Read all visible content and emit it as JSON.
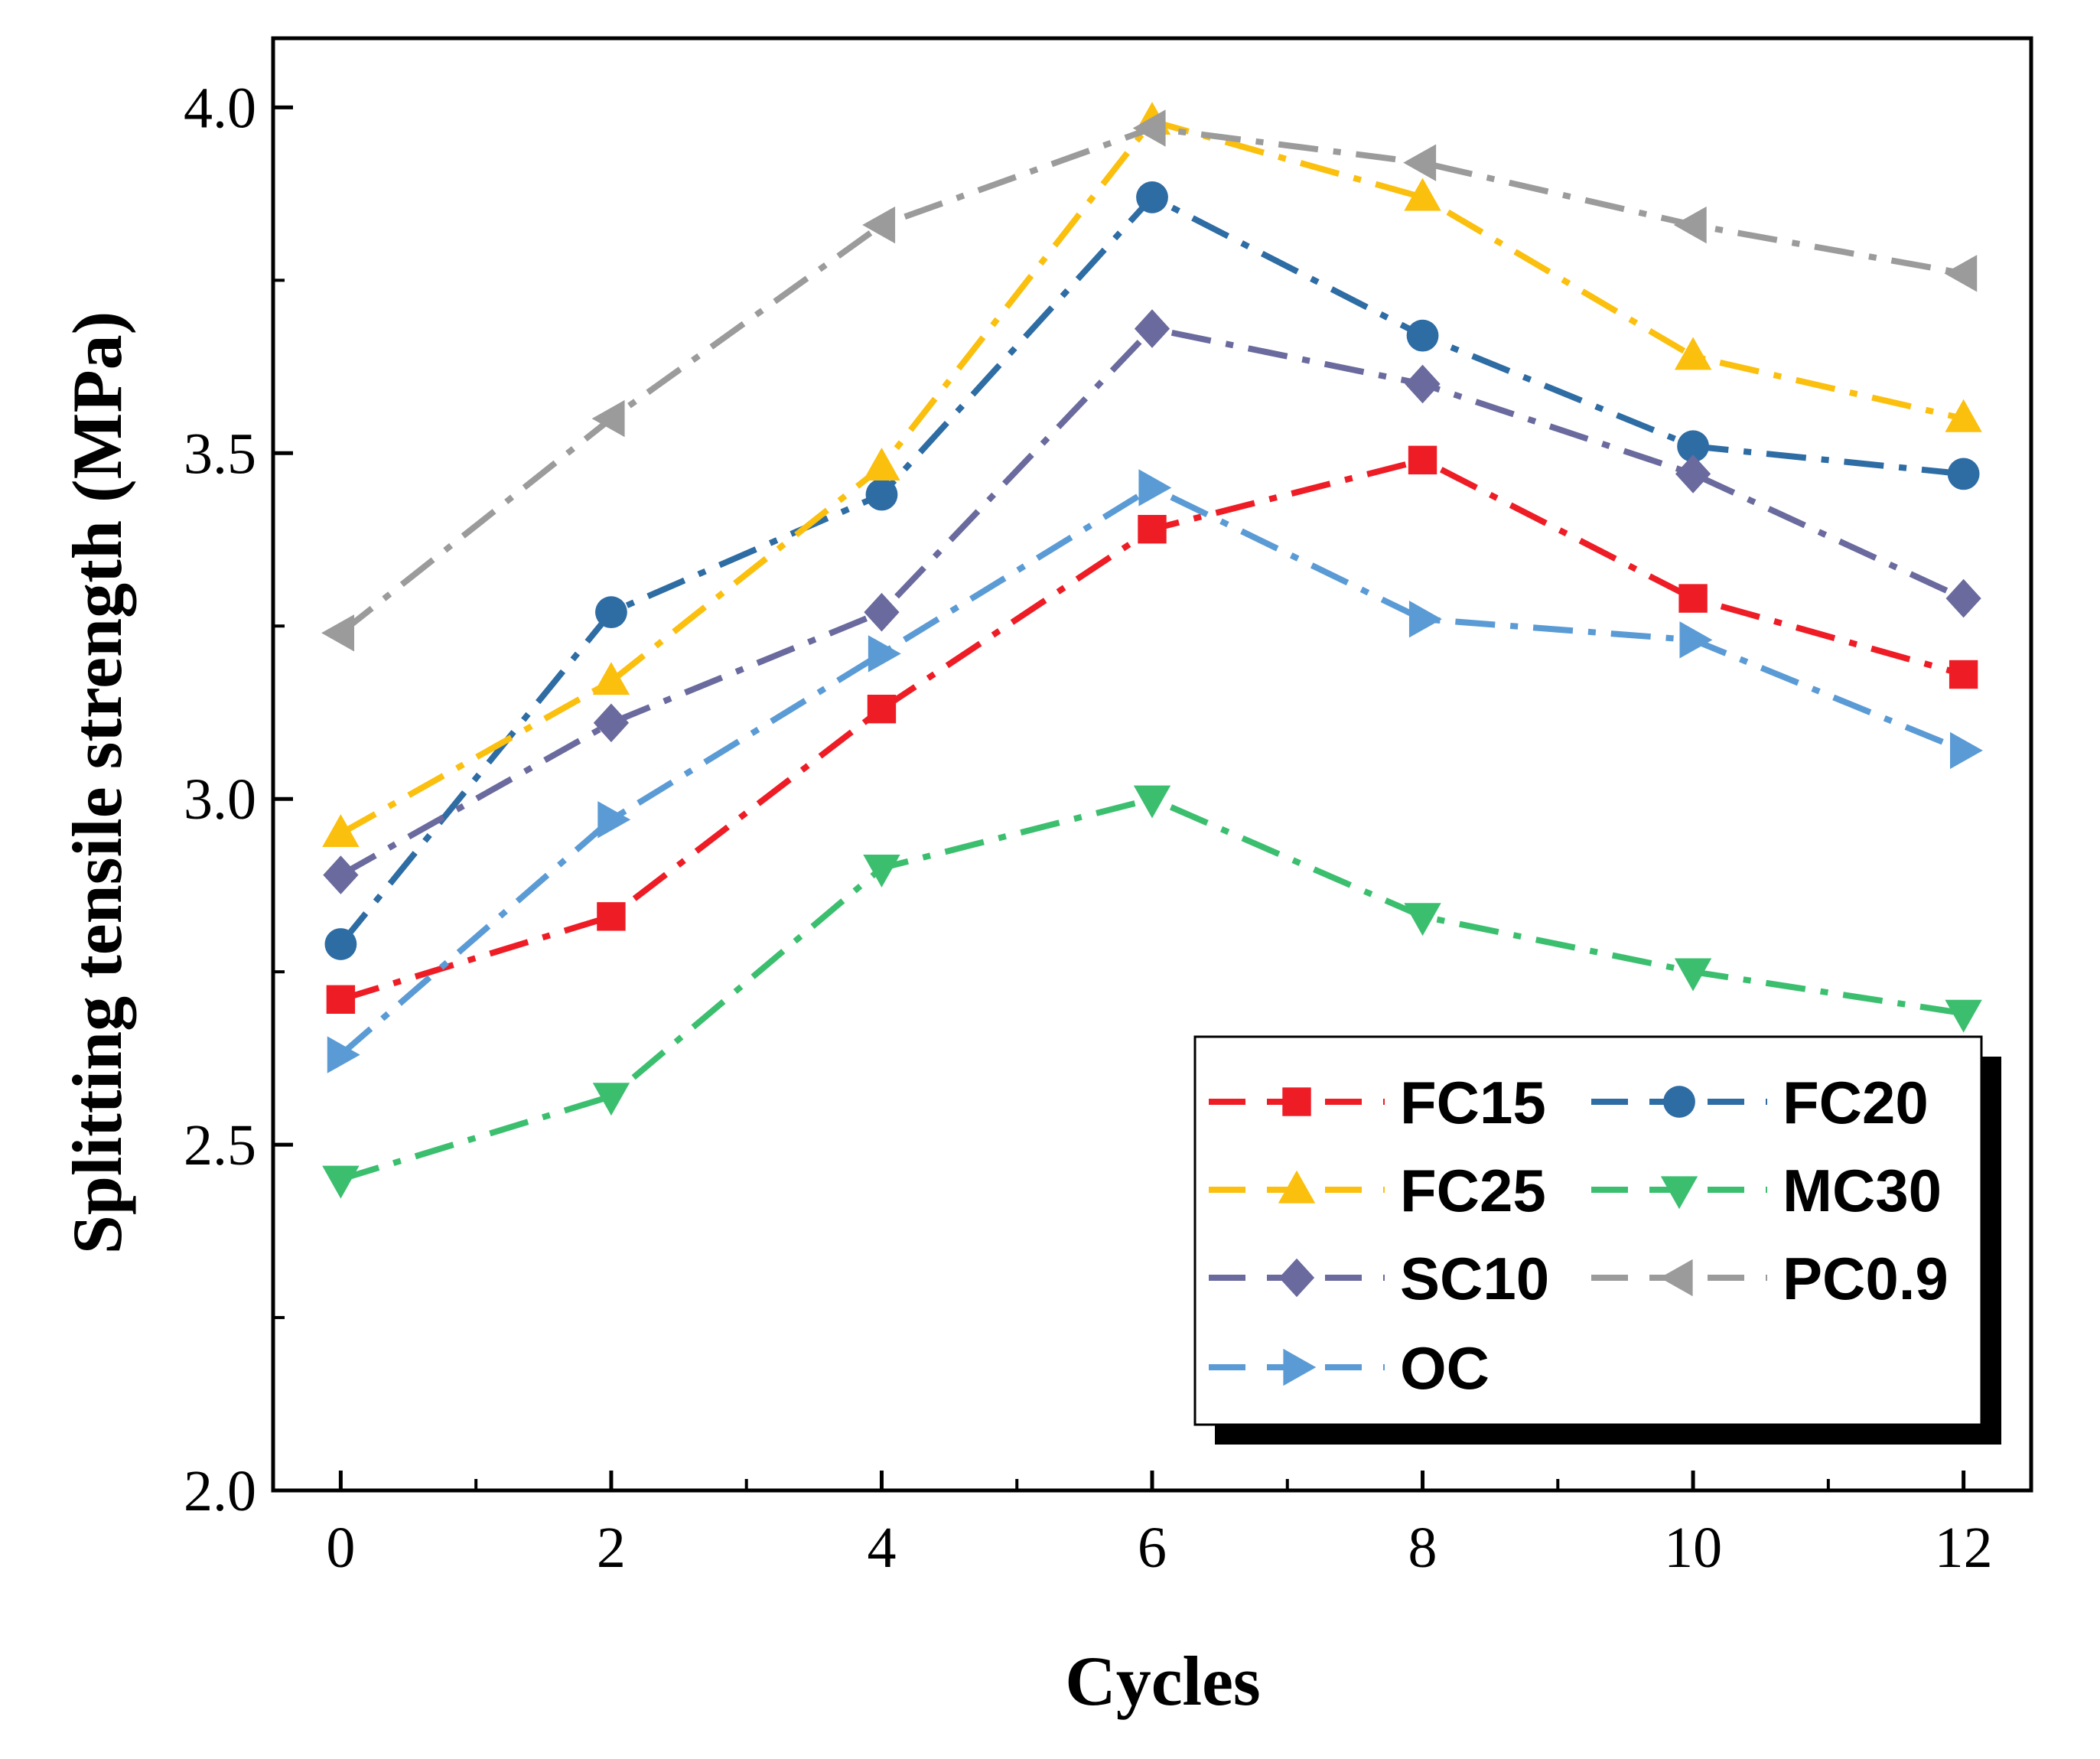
{
  "chart_data": {
    "type": "line",
    "title": "",
    "xlabel": "Cycles",
    "ylabel": "Splitting tensile strength (MPa)",
    "xlim": [
      -0.5,
      12.5
    ],
    "ylim": [
      2.0,
      4.1
    ],
    "xticks": [
      0,
      2,
      4,
      6,
      8,
      10,
      12
    ],
    "xtick_labels": [
      "0",
      "2",
      "4",
      "6",
      "8",
      "10",
      "12"
    ],
    "yticks": [
      2.0,
      2.5,
      3.0,
      3.5,
      4.0
    ],
    "ytick_labels": [
      "2.0",
      "2.5",
      "3.0",
      "3.5",
      "4.0"
    ],
    "x": [
      0,
      2,
      4,
      6,
      8,
      10,
      12
    ],
    "grid": false,
    "legend_position": "bottom-right",
    "series": [
      {
        "name": "FC15",
        "color": "#ee1c25",
        "marker": "square",
        "values": [
          2.71,
          2.83,
          3.13,
          3.39,
          3.49,
          3.29,
          3.18
        ]
      },
      {
        "name": "FC20",
        "color": "#2e6ca4",
        "marker": "circle",
        "values": [
          2.79,
          3.27,
          3.44,
          3.87,
          3.67,
          3.51,
          3.47
        ]
      },
      {
        "name": "FC25",
        "color": "#fbbf0d",
        "marker": "triangle-up",
        "values": [
          2.95,
          3.17,
          3.48,
          3.98,
          3.87,
          3.64,
          3.55
        ]
      },
      {
        "name": "MC30",
        "color": "#3bbf6f",
        "marker": "triangle-down",
        "values": [
          2.45,
          2.57,
          2.9,
          3.0,
          2.83,
          2.75,
          2.69
        ]
      },
      {
        "name": "SC10",
        "color": "#6a6a9e",
        "marker": "diamond",
        "values": [
          2.89,
          3.11,
          3.27,
          3.68,
          3.6,
          3.47,
          3.29
        ]
      },
      {
        "name": "PC0.9",
        "color": "#9b9b9b",
        "marker": "triangle-left",
        "values": [
          3.24,
          3.55,
          3.83,
          3.97,
          3.92,
          3.83,
          3.76
        ]
      },
      {
        "name": "OC",
        "color": "#5b9bd5",
        "marker": "triangle-right",
        "values": [
          2.63,
          2.97,
          3.21,
          3.45,
          3.26,
          3.23,
          3.07
        ]
      }
    ]
  }
}
